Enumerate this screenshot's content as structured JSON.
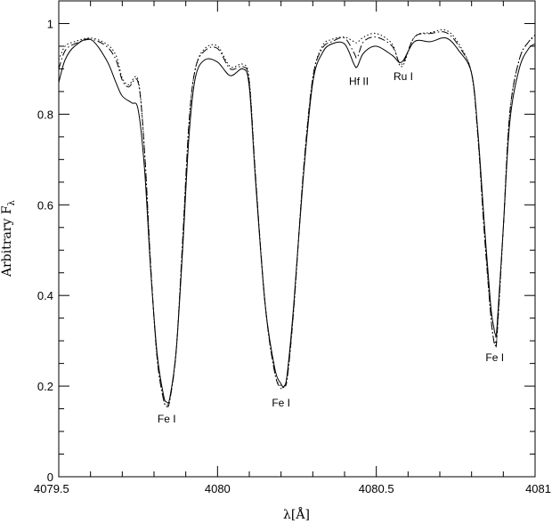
{
  "chart_data": {
    "type": "line",
    "xlabel": "λ[Å]",
    "ylabel_main": "Arbitrary F",
    "ylabel_sub": "λ",
    "xlim": [
      4079.5,
      4081
    ],
    "ylim": [
      0,
      1.05
    ],
    "x_ticks": [
      {
        "value": 4079.5,
        "label": "4079.5"
      },
      {
        "value": 4080,
        "label": "4080"
      },
      {
        "value": 4080.5,
        "label": "4080.5"
      },
      {
        "value": 4081,
        "label": "4081"
      }
    ],
    "y_ticks": [
      {
        "value": 0,
        "label": "0"
      },
      {
        "value": 0.2,
        "label": "0.2"
      },
      {
        "value": 0.4,
        "label": "0.4"
      },
      {
        "value": 0.6,
        "label": "0.6"
      },
      {
        "value": 0.8,
        "label": "0.8"
      },
      {
        "value": 1,
        "label": "1"
      }
    ],
    "grid": false,
    "series": [
      {
        "style": "solid",
        "x": [
          4079.5,
          4079.52,
          4079.55,
          4079.6,
          4079.65,
          4079.68,
          4079.7,
          4079.73,
          4079.75,
          4079.77,
          4079.79,
          4079.81,
          4079.83,
          4079.84,
          4079.85,
          4079.87,
          4079.89,
          4079.91,
          4079.93,
          4079.96,
          4080.0,
          4080.04,
          4080.08,
          4080.1,
          4080.12,
          4080.15,
          4080.18,
          4080.2,
          4080.21,
          4080.22,
          4080.24,
          4080.27,
          4080.3,
          4080.33,
          4080.36,
          4080.4,
          4080.43,
          4080.44,
          4080.46,
          4080.5,
          4080.55,
          4080.58,
          4080.62,
          4080.67,
          4080.72,
          4080.76,
          4080.8,
          4080.82,
          4080.84,
          4080.86,
          4080.87,
          4080.875,
          4080.88,
          4080.9,
          4080.92,
          4080.95,
          4080.98,
          4081.0
        ],
        "y": [
          0.87,
          0.92,
          0.95,
          0.965,
          0.92,
          0.87,
          0.84,
          0.825,
          0.81,
          0.68,
          0.45,
          0.27,
          0.18,
          0.165,
          0.175,
          0.28,
          0.5,
          0.75,
          0.88,
          0.92,
          0.915,
          0.885,
          0.9,
          0.86,
          0.65,
          0.38,
          0.24,
          0.205,
          0.2,
          0.23,
          0.38,
          0.66,
          0.87,
          0.935,
          0.955,
          0.955,
          0.91,
          0.905,
          0.935,
          0.95,
          0.93,
          0.915,
          0.96,
          0.96,
          0.968,
          0.94,
          0.89,
          0.76,
          0.56,
          0.38,
          0.33,
          0.315,
          0.33,
          0.55,
          0.78,
          0.9,
          0.945,
          0.955
        ]
      },
      {
        "style": "dashed",
        "x": [
          4079.5,
          4079.52,
          4079.55,
          4079.6,
          4079.65,
          4079.68,
          4079.7,
          4079.72,
          4079.75,
          4079.77,
          4079.79,
          4079.81,
          4079.83,
          4079.84,
          4079.85,
          4079.87,
          4079.89,
          4079.91,
          4079.93,
          4079.96,
          4080.0,
          4080.04,
          4080.08,
          4080.1,
          4080.12,
          4080.15,
          4080.18,
          4080.2,
          4080.21,
          4080.22,
          4080.24,
          4080.27,
          4080.3,
          4080.33,
          4080.36,
          4080.4,
          4080.43,
          4080.44,
          4080.46,
          4080.5,
          4080.55,
          4080.58,
          4080.62,
          4080.67,
          4080.72,
          4080.76,
          4080.8,
          4080.82,
          4080.84,
          4080.86,
          4080.87,
          4080.875,
          4080.88,
          4080.9,
          4080.92,
          4080.95,
          4080.98,
          4081.0
        ],
        "y": [
          0.9,
          0.94,
          0.955,
          0.965,
          0.95,
          0.92,
          0.875,
          0.86,
          0.87,
          0.72,
          0.46,
          0.26,
          0.17,
          0.155,
          0.17,
          0.28,
          0.52,
          0.78,
          0.9,
          0.94,
          0.945,
          0.9,
          0.905,
          0.87,
          0.66,
          0.38,
          0.23,
          0.195,
          0.2,
          0.22,
          0.37,
          0.67,
          0.88,
          0.945,
          0.96,
          0.968,
          0.935,
          0.925,
          0.96,
          0.97,
          0.95,
          0.91,
          0.97,
          0.978,
          0.98,
          0.95,
          0.89,
          0.75,
          0.54,
          0.36,
          0.3,
          0.29,
          0.31,
          0.55,
          0.8,
          0.92,
          0.96,
          0.97
        ]
      },
      {
        "style": "dotted",
        "x": [
          4079.5,
          4079.52,
          4079.55,
          4079.6,
          4079.65,
          4079.68,
          4079.7,
          4079.72,
          4079.75,
          4079.77,
          4079.79,
          4079.81,
          4079.83,
          4079.84,
          4079.85,
          4079.87,
          4079.89,
          4079.91,
          4079.93,
          4079.96,
          4080.0,
          4080.04,
          4080.08,
          4080.1,
          4080.12,
          4080.15,
          4080.18,
          4080.2,
          4080.21,
          4080.22,
          4080.24,
          4080.27,
          4080.3,
          4080.33,
          4080.36,
          4080.4,
          4080.43,
          4080.44,
          4080.46,
          4080.5,
          4080.55,
          4080.58,
          4080.62,
          4080.67,
          4080.72,
          4080.76,
          4080.8,
          4080.82,
          4080.84,
          4080.86,
          4080.87,
          4080.875,
          4080.88,
          4080.9,
          4080.92,
          4080.95,
          4080.98,
          4081.0
        ],
        "y": [
          0.92,
          0.95,
          0.96,
          0.968,
          0.955,
          0.93,
          0.88,
          0.865,
          0.875,
          0.72,
          0.46,
          0.26,
          0.17,
          0.16,
          0.17,
          0.28,
          0.52,
          0.78,
          0.9,
          0.945,
          0.95,
          0.905,
          0.91,
          0.875,
          0.66,
          0.38,
          0.23,
          0.2,
          0.2,
          0.22,
          0.37,
          0.67,
          0.88,
          0.95,
          0.965,
          0.97,
          0.96,
          0.958,
          0.97,
          0.978,
          0.955,
          0.905,
          0.97,
          0.98,
          0.985,
          0.955,
          0.89,
          0.75,
          0.54,
          0.36,
          0.3,
          0.3,
          0.31,
          0.55,
          0.8,
          0.92,
          0.96,
          0.975
        ]
      }
    ],
    "annotations": [
      {
        "text": "Fe I",
        "x": 4079.84,
        "y": 0.12
      },
      {
        "text": "Fe I",
        "x": 4080.2,
        "y": 0.155
      },
      {
        "text": "Hf II",
        "x": 4080.445,
        "y": 0.865
      },
      {
        "text": "Ru I",
        "x": 4080.585,
        "y": 0.875
      },
      {
        "text": "Fe I",
        "x": 4080.873,
        "y": 0.255
      }
    ]
  }
}
